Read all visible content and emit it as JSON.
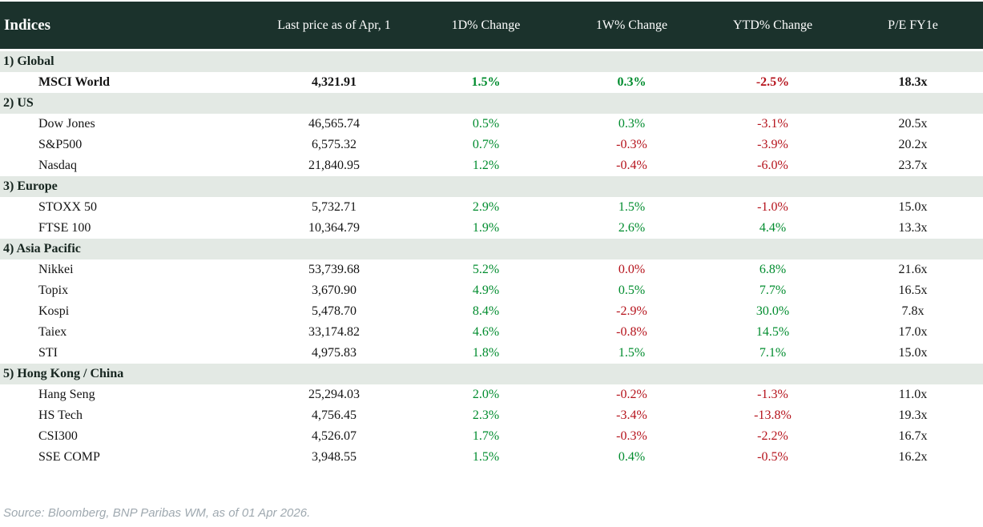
{
  "header": {
    "title": "Indices",
    "columns": [
      "Last price as of Apr, 1",
      "1D% Change",
      "1W% Change",
      "YTD% Change",
      "P/E FY1e"
    ]
  },
  "table": {
    "sections": [
      {
        "label": "1) Global",
        "rows": [
          {
            "name": "MSCI World",
            "price": "4,321.91",
            "changes": [
              {
                "value": "1.5%",
                "tone": "up"
              },
              {
                "value": "0.3%",
                "tone": "up"
              },
              {
                "value": "-2.5%",
                "tone": "down"
              }
            ],
            "pe": "18.3x",
            "emphasis": true
          }
        ]
      },
      {
        "label": "2) US",
        "rows": [
          {
            "name": "Dow Jones",
            "price": "46,565.74",
            "changes": [
              {
                "value": "0.5%",
                "tone": "up"
              },
              {
                "value": "0.3%",
                "tone": "up"
              },
              {
                "value": "-3.1%",
                "tone": "down"
              }
            ],
            "pe": "20.5x",
            "emphasis": false
          },
          {
            "name": "S&P500",
            "price": "6,575.32",
            "changes": [
              {
                "value": "0.7%",
                "tone": "up"
              },
              {
                "value": "-0.3%",
                "tone": "down"
              },
              {
                "value": "-3.9%",
                "tone": "down"
              }
            ],
            "pe": "20.2x",
            "emphasis": false
          },
          {
            "name": "Nasdaq",
            "price": "21,840.95",
            "changes": [
              {
                "value": "1.2%",
                "tone": "up"
              },
              {
                "value": "-0.4%",
                "tone": "down"
              },
              {
                "value": "-6.0%",
                "tone": "down"
              }
            ],
            "pe": "23.7x",
            "emphasis": false
          }
        ]
      },
      {
        "label": "3) Europe",
        "rows": [
          {
            "name": "STOXX 50",
            "price": "5,732.71",
            "changes": [
              {
                "value": "2.9%",
                "tone": "up"
              },
              {
                "value": "1.5%",
                "tone": "up"
              },
              {
                "value": "-1.0%",
                "tone": "down"
              }
            ],
            "pe": "15.0x",
            "emphasis": false
          },
          {
            "name": "FTSE 100",
            "price": "10,364.79",
            "changes": [
              {
                "value": "1.9%",
                "tone": "up"
              },
              {
                "value": "2.6%",
                "tone": "up"
              },
              {
                "value": "4.4%",
                "tone": "up"
              }
            ],
            "pe": "13.3x",
            "emphasis": false
          }
        ]
      },
      {
        "label": "4) Asia Pacific",
        "rows": [
          {
            "name": "Nikkei",
            "price": "53,739.68",
            "changes": [
              {
                "value": "5.2%",
                "tone": "up"
              },
              {
                "value": "0.0%",
                "tone": "down"
              },
              {
                "value": "6.8%",
                "tone": "up"
              }
            ],
            "pe": "21.6x",
            "emphasis": false
          },
          {
            "name": "Topix",
            "price": "3,670.90",
            "changes": [
              {
                "value": "4.9%",
                "tone": "up"
              },
              {
                "value": "0.5%",
                "tone": "up"
              },
              {
                "value": "7.7%",
                "tone": "up"
              }
            ],
            "pe": "16.5x",
            "emphasis": false
          },
          {
            "name": "Kospi",
            "price": "5,478.70",
            "changes": [
              {
                "value": "8.4%",
                "tone": "up"
              },
              {
                "value": "-2.9%",
                "tone": "down"
              },
              {
                "value": "30.0%",
                "tone": "up"
              }
            ],
            "pe": "7.8x",
            "emphasis": false
          },
          {
            "name": "Taiex",
            "price": "33,174.82",
            "changes": [
              {
                "value": "4.6%",
                "tone": "up"
              },
              {
                "value": "-0.8%",
                "tone": "down"
              },
              {
                "value": "14.5%",
                "tone": "up"
              }
            ],
            "pe": "17.0x",
            "emphasis": false
          },
          {
            "name": "STI",
            "price": "4,975.83",
            "changes": [
              {
                "value": "1.8%",
                "tone": "up"
              },
              {
                "value": "1.5%",
                "tone": "up"
              },
              {
                "value": "7.1%",
                "tone": "up"
              }
            ],
            "pe": "15.0x",
            "emphasis": false
          }
        ]
      },
      {
        "label": "5) Hong Kong / China",
        "rows": [
          {
            "name": "Hang Seng",
            "price": "25,294.03",
            "changes": [
              {
                "value": "2.0%",
                "tone": "up"
              },
              {
                "value": "-0.2%",
                "tone": "down"
              },
              {
                "value": "-1.3%",
                "tone": "down"
              }
            ],
            "pe": "11.0x",
            "emphasis": false
          },
          {
            "name": "HS Tech",
            "price": "4,756.45",
            "changes": [
              {
                "value": "2.3%",
                "tone": "up"
              },
              {
                "value": "-3.4%",
                "tone": "down"
              },
              {
                "value": "-13.8%",
                "tone": "down"
              }
            ],
            "pe": "19.3x",
            "emphasis": false
          },
          {
            "name": "CSI300",
            "price": "4,526.07",
            "changes": [
              {
                "value": "1.7%",
                "tone": "up"
              },
              {
                "value": "-0.3%",
                "tone": "down"
              },
              {
                "value": "-2.2%",
                "tone": "down"
              }
            ],
            "pe": "16.7x",
            "emphasis": false
          },
          {
            "name": "SSE COMP",
            "price": "3,948.55",
            "changes": [
              {
                "value": "1.5%",
                "tone": "up"
              },
              {
                "value": "0.4%",
                "tone": "up"
              },
              {
                "value": "-0.5%",
                "tone": "down"
              }
            ],
            "pe": "16.2x",
            "emphasis": false
          }
        ]
      }
    ]
  },
  "footer": {
    "source": "Source: Bloomberg, BNP Paribas WM, as of 01 Apr 2026."
  },
  "colors": {
    "header_bg": "#1b322c",
    "section_bg": "#e3e9e4",
    "up": "#008c2e",
    "down": "#b5121b",
    "footer_fg": "#9fa9b0"
  },
  "chart_data": {
    "type": "table",
    "title": "Indices",
    "columns": [
      "Index",
      "Last price as of Apr, 1",
      "1D% Change",
      "1W% Change",
      "YTD% Change",
      "P/E FY1e"
    ],
    "rows": [
      {
        "section": "1) Global",
        "index": "MSCI World",
        "last_price": 4321.91,
        "d1_pct": 1.5,
        "w1_pct": 0.3,
        "ytd_pct": -2.5,
        "pe_fy1e": 18.3
      },
      {
        "section": "2) US",
        "index": "Dow Jones",
        "last_price": 46565.74,
        "d1_pct": 0.5,
        "w1_pct": 0.3,
        "ytd_pct": -3.1,
        "pe_fy1e": 20.5
      },
      {
        "section": "2) US",
        "index": "S&P500",
        "last_price": 6575.32,
        "d1_pct": 0.7,
        "w1_pct": -0.3,
        "ytd_pct": -3.9,
        "pe_fy1e": 20.2
      },
      {
        "section": "2) US",
        "index": "Nasdaq",
        "last_price": 21840.95,
        "d1_pct": 1.2,
        "w1_pct": -0.4,
        "ytd_pct": -6.0,
        "pe_fy1e": 23.7
      },
      {
        "section": "3) Europe",
        "index": "STOXX 50",
        "last_price": 5732.71,
        "d1_pct": 2.9,
        "w1_pct": 1.5,
        "ytd_pct": -1.0,
        "pe_fy1e": 15.0
      },
      {
        "section": "3) Europe",
        "index": "FTSE 100",
        "last_price": 10364.79,
        "d1_pct": 1.9,
        "w1_pct": 2.6,
        "ytd_pct": 4.4,
        "pe_fy1e": 13.3
      },
      {
        "section": "4) Asia Pacific",
        "index": "Nikkei",
        "last_price": 53739.68,
        "d1_pct": 5.2,
        "w1_pct": 0.0,
        "ytd_pct": 6.8,
        "pe_fy1e": 21.6
      },
      {
        "section": "4) Asia Pacific",
        "index": "Topix",
        "last_price": 3670.9,
        "d1_pct": 4.9,
        "w1_pct": 0.5,
        "ytd_pct": 7.7,
        "pe_fy1e": 16.5
      },
      {
        "section": "4) Asia Pacific",
        "index": "Kospi",
        "last_price": 5478.7,
        "d1_pct": 8.4,
        "w1_pct": -2.9,
        "ytd_pct": 30.0,
        "pe_fy1e": 7.8
      },
      {
        "section": "4) Asia Pacific",
        "index": "Taiex",
        "last_price": 33174.82,
        "d1_pct": 4.6,
        "w1_pct": -0.8,
        "ytd_pct": 14.5,
        "pe_fy1e": 17.0
      },
      {
        "section": "4) Asia Pacific",
        "index": "STI",
        "last_price": 4975.83,
        "d1_pct": 1.8,
        "w1_pct": 1.5,
        "ytd_pct": 7.1,
        "pe_fy1e": 15.0
      },
      {
        "section": "5) Hong Kong / China",
        "index": "Hang Seng",
        "last_price": 25294.03,
        "d1_pct": 2.0,
        "w1_pct": -0.2,
        "ytd_pct": -1.3,
        "pe_fy1e": 11.0
      },
      {
        "section": "5) Hong Kong / China",
        "index": "HS Tech",
        "last_price": 4756.45,
        "d1_pct": 2.3,
        "w1_pct": -3.4,
        "ytd_pct": -13.8,
        "pe_fy1e": 19.3
      },
      {
        "section": "5) Hong Kong / China",
        "index": "CSI300",
        "last_price": 4526.07,
        "d1_pct": 1.7,
        "w1_pct": -0.3,
        "ytd_pct": -2.2,
        "pe_fy1e": 16.7
      },
      {
        "section": "5) Hong Kong / China",
        "index": "SSE COMP",
        "last_price": 3948.55,
        "d1_pct": 1.5,
        "w1_pct": 0.4,
        "ytd_pct": -0.5,
        "pe_fy1e": 16.2
      }
    ],
    "notes": "Positive changes rendered green, negative rendered red; Nikkei 1W 0.0% rendered red. MSCI World row rendered bold.",
    "source": "Source: Bloomberg, BNP Paribas WM, as of 01 Apr 2026."
  }
}
